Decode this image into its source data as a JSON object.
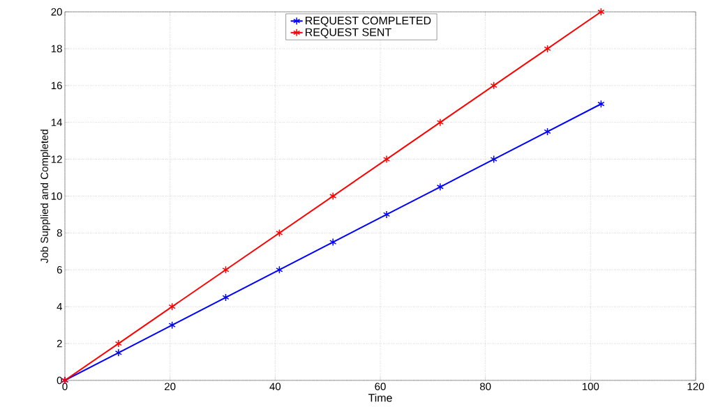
{
  "chart_data": {
    "type": "line",
    "xlabel": "Time",
    "ylabel": "Job Supplied and Completed",
    "xlim": [
      0,
      120
    ],
    "ylim": [
      0,
      20
    ],
    "xticks": [
      0,
      20,
      40,
      60,
      80,
      100,
      120
    ],
    "yticks": [
      0,
      2,
      4,
      6,
      8,
      10,
      12,
      14,
      16,
      18,
      20
    ],
    "grid": true,
    "legend": "top",
    "marker": "cross",
    "line_style": "solid",
    "series": [
      {
        "name": "REQUEST COMPLETED",
        "color": "#0000ff",
        "x": [
          0,
          10.2,
          20.4,
          30.6,
          40.8,
          51,
          61.2,
          71.4,
          81.6,
          91.8,
          102
        ],
        "values": [
          0,
          1.5,
          3,
          4.5,
          6,
          7.5,
          9,
          10.5,
          12,
          13.5,
          15
        ]
      },
      {
        "name": "REQUEST SENT",
        "color": "#ff0000",
        "x": [
          0,
          10.2,
          20.4,
          30.6,
          40.8,
          51,
          61.2,
          71.4,
          81.6,
          91.8,
          102
        ],
        "values": [
          0,
          2,
          4,
          6,
          8,
          10,
          12,
          14,
          16,
          18,
          20
        ]
      }
    ]
  }
}
